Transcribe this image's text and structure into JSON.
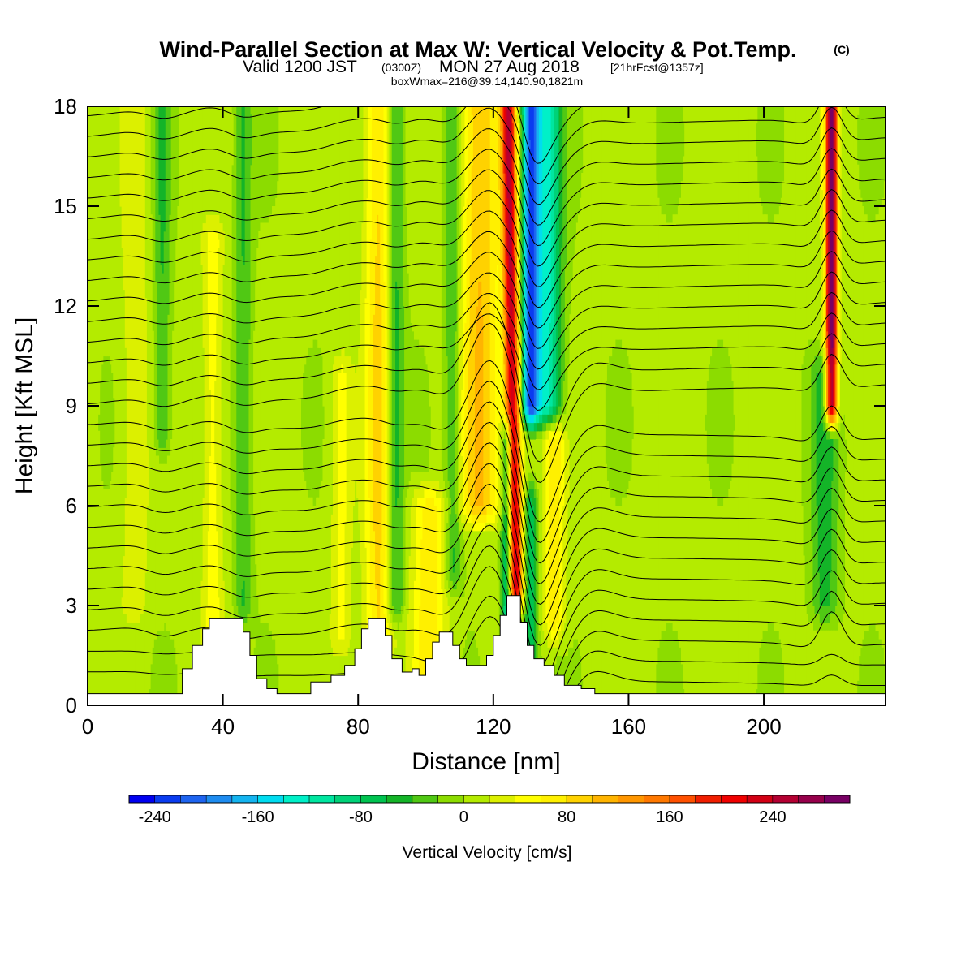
{
  "title": {
    "main": "Wind-Parallel Section at Max W: Vertical Velocity & Pot.Temp.",
    "copyright": "(C)",
    "valid_prefix": "Valid 1200 JST",
    "utc": "(0300Z)",
    "valid_suffix": "MON 27 Aug 2018",
    "forecast": "[21hrFcst@1357z]",
    "box_info": "boxWmax=216@39.14,140.90,1821m"
  },
  "chart_data": {
    "type": "heatmap",
    "xlabel": "Distance [nm]",
    "ylabel": "Height [Kft MSL]",
    "xlim": [
      0,
      236
    ],
    "ylim": [
      0,
      18
    ],
    "x_ticks": [
      "0",
      "40",
      "80",
      "120",
      "160",
      "200"
    ],
    "x_tick_values": [
      0,
      40,
      80,
      120,
      160,
      200
    ],
    "y_ticks": [
      "0",
      "3",
      "6",
      "9",
      "12",
      "15",
      "18"
    ],
    "y_tick_values": [
      0,
      3,
      6,
      9,
      12,
      15,
      18
    ],
    "colorbar": {
      "title": "Vertical Velocity [cm/s]",
      "labels": [
        "-240",
        "-160",
        "-80",
        "0",
        "80",
        "160",
        "240"
      ],
      "label_values": [
        -240,
        -160,
        -80,
        0,
        80,
        160,
        240
      ],
      "range": [
        -260,
        300
      ],
      "step": 20,
      "colors": [
        "#0000f0",
        "#0a3cf0",
        "#1e64f0",
        "#1e8cf0",
        "#14b4f0",
        "#00dcf0",
        "#00f0c8",
        "#00e6a0",
        "#00d278",
        "#00c350",
        "#14b428",
        "#50c814",
        "#8cdc00",
        "#b4eb00",
        "#dcf000",
        "#ffff00",
        "#fff000",
        "#ffd200",
        "#ffb400",
        "#ff9600",
        "#ff7800",
        "#ff5000",
        "#f01e00",
        "#f00000",
        "#d20014",
        "#b40032",
        "#96004b",
        "#780064"
      ]
    },
    "terrain_kft": [
      [
        0,
        0.35
      ],
      [
        25,
        0.35
      ],
      [
        28,
        1.1
      ],
      [
        31,
        1.8
      ],
      [
        34,
        2.3
      ],
      [
        36,
        2.6
      ],
      [
        44,
        2.6
      ],
      [
        46,
        2.2
      ],
      [
        48,
        1.5
      ],
      [
        50,
        0.8
      ],
      [
        53,
        0.5
      ],
      [
        56,
        0.35
      ],
      [
        62,
        0.35
      ],
      [
        66,
        0.7
      ],
      [
        72,
        0.9
      ],
      [
        76,
        1.2
      ],
      [
        79,
        1.7
      ],
      [
        81,
        2.3
      ],
      [
        83,
        2.6
      ],
      [
        86,
        2.6
      ],
      [
        88,
        2.1
      ],
      [
        90,
        1.4
      ],
      [
        93,
        1.0
      ],
      [
        96,
        1.1
      ],
      [
        98,
        0.9
      ],
      [
        100,
        1.4
      ],
      [
        102,
        1.9
      ],
      [
        104,
        2.2
      ],
      [
        106,
        2.2
      ],
      [
        108,
        1.8
      ],
      [
        110,
        1.4
      ],
      [
        112,
        1.2
      ],
      [
        116,
        1.2
      ],
      [
        118,
        1.5
      ],
      [
        120,
        2.1
      ],
      [
        122,
        2.7
      ],
      [
        124,
        3.3
      ],
      [
        126,
        3.3
      ],
      [
        128,
        2.5
      ],
      [
        130,
        1.8
      ],
      [
        132,
        1.4
      ],
      [
        135,
        1.2
      ],
      [
        138,
        0.9
      ],
      [
        141,
        0.6
      ],
      [
        146,
        0.5
      ],
      [
        150,
        0.35
      ],
      [
        236,
        0.35
      ]
    ],
    "updrafts": [
      {
        "x": 14,
        "w": 4,
        "peak": 30,
        "y0": 3,
        "y1": 18
      },
      {
        "x": 37,
        "w": 3,
        "peak": 45,
        "y0": 1.5,
        "y1": 14
      },
      {
        "x": 75,
        "w": 3,
        "peak": 40,
        "y0": 2,
        "y1": 10
      },
      {
        "x": 86,
        "w": 4,
        "peak": 80,
        "y0": 2,
        "y1": 18
      },
      {
        "x": 101,
        "w": 5,
        "peak": 70,
        "y0": 0.8,
        "y1": 6
      },
      {
        "x": 116,
        "w": 6,
        "peak": 95,
        "y0": 6,
        "y1": 18
      },
      {
        "x": 126.5,
        "w": 2.2,
        "peak": 230,
        "y0": 3.5,
        "y1": 18
      },
      {
        "x": 138,
        "w": 3,
        "peak": 70,
        "y0": 2.5,
        "y1": 8
      },
      {
        "x": 220,
        "w": 1.8,
        "peak": 290,
        "y0": 9,
        "y1": 18
      }
    ],
    "downdrafts": [
      {
        "x": 22,
        "w": 2.5,
        "peak": -45,
        "y0": 8,
        "y1": 18
      },
      {
        "x": 46,
        "w": 2.5,
        "peak": -45,
        "y0": 3,
        "y1": 18
      },
      {
        "x": 91,
        "w": 2.5,
        "peak": -60,
        "y0": 3,
        "y1": 18
      },
      {
        "x": 108,
        "w": 2.5,
        "peak": -55,
        "y0": 4,
        "y1": 18
      },
      {
        "x": 131,
        "w": 2.5,
        "peak": -210,
        "y0": 9,
        "y1": 18
      },
      {
        "x": 136,
        "w": 4,
        "peak": -130,
        "y0": 9,
        "y1": 18
      },
      {
        "x": 124,
        "w": 1.6,
        "peak": -120,
        "y0": 2,
        "y1": 8
      },
      {
        "x": 131,
        "w": 2,
        "peak": -80,
        "y0": 1,
        "y1": 6
      },
      {
        "x": 218,
        "w": 4,
        "peak": -55,
        "y0": 3,
        "y1": 10
      }
    ],
    "isentropes": {
      "count": 28,
      "base_kft": 1.0,
      "top_kft": 17.7,
      "wave_center_nm": 127
    }
  }
}
